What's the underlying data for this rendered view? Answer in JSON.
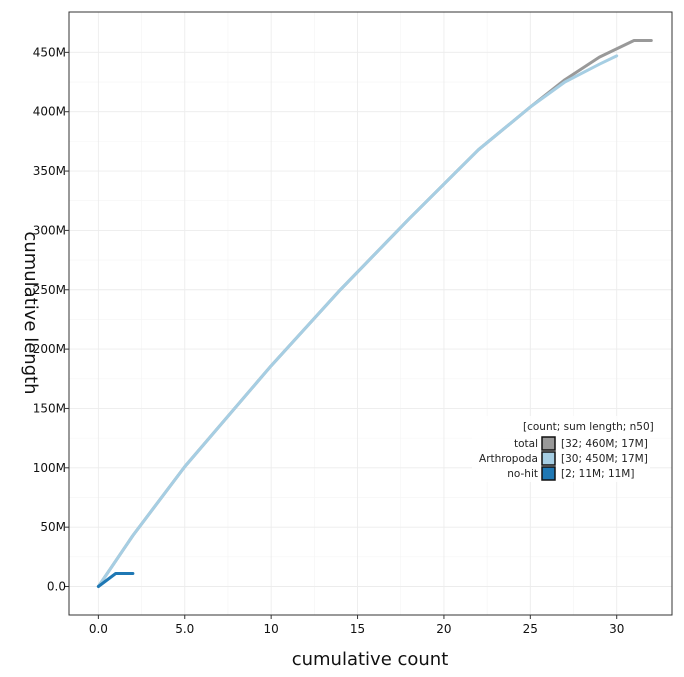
{
  "chart_data": {
    "type": "line",
    "title": "",
    "xlabel": "cumulative count",
    "ylabel": "cumulative length",
    "xlim": [
      -1.7,
      33.2
    ],
    "ylim": [
      -24000000,
      484000000
    ],
    "x_ticks": [
      0,
      5,
      10,
      15,
      20,
      25,
      30
    ],
    "x_tick_labels": [
      "0.0",
      "5.0",
      "10",
      "15",
      "20",
      "25",
      "30"
    ],
    "y_ticks": [
      0,
      50000000,
      100000000,
      150000000,
      200000000,
      250000000,
      300000000,
      350000000,
      400000000,
      450000000
    ],
    "y_tick_labels": [
      "0.0",
      "50M",
      "100M",
      "150M",
      "200M",
      "250M",
      "300M",
      "350M",
      "400M",
      "450M"
    ],
    "grid": true,
    "legend": {
      "placement": "right",
      "title": "[count; sum length; n50]",
      "entries": [
        {
          "name": "total",
          "label": "[32; 460M; 17M]"
        },
        {
          "name": "Arthropoda",
          "label": "[30; 450M; 17M]"
        },
        {
          "name": "no-hit",
          "label": "[2; 11M; 11M]"
        }
      ]
    },
    "series": [
      {
        "name": "total",
        "color": "#999999",
        "x": [
          0,
          2,
          5,
          10,
          14,
          18,
          22,
          25,
          27,
          29,
          31,
          32
        ],
        "y": [
          0,
          43000000,
          101000000,
          186000000,
          250000000,
          310000000,
          368000000,
          404000000,
          427000000,
          446000000,
          460000000,
          460000000
        ]
      },
      {
        "name": "Arthropoda",
        "color": "#a6cee3",
        "x": [
          0,
          2,
          5,
          10,
          14,
          18,
          22,
          25,
          27,
          29,
          30
        ],
        "y": [
          0,
          43000000,
          101000000,
          186000000,
          250000000,
          310000000,
          368000000,
          404000000,
          425000000,
          440000000,
          447000000
        ]
      },
      {
        "name": "no-hit",
        "color": "#1f78b4",
        "x": [
          0,
          1,
          2
        ],
        "y": [
          0,
          11000000,
          11000000
        ]
      }
    ]
  }
}
